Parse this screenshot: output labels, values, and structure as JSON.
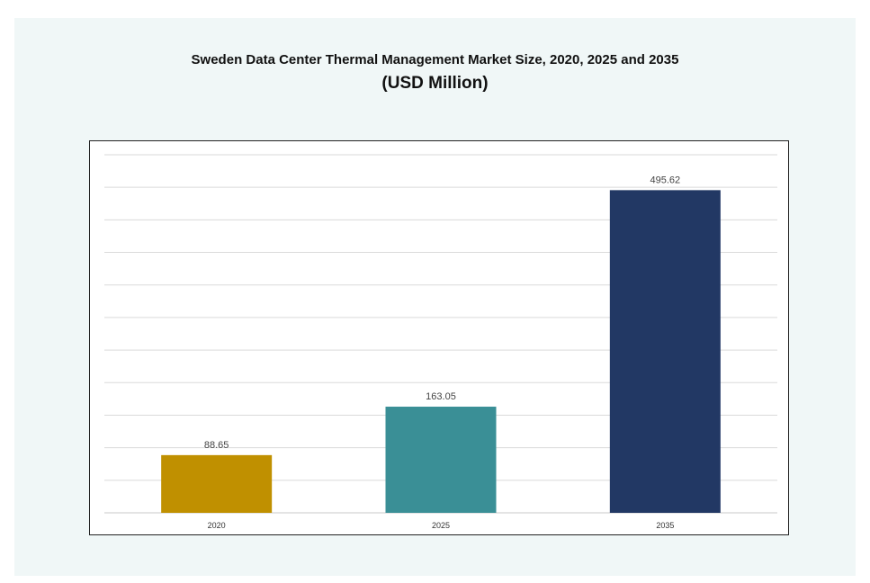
{
  "chart_data": {
    "type": "bar",
    "title": "Sweden Data Center Thermal Management Market Size, 2020, 2025 and 2035",
    "subtitle": "(USD Million)",
    "xlabel": "",
    "ylabel": "",
    "categories": [
      "2020",
      "2025",
      "2035"
    ],
    "values": [
      88.65,
      163.05,
      495.62
    ],
    "value_labels": [
      "88.65",
      "163.05",
      "495.62"
    ],
    "colors": [
      "#c09000",
      "#3a8f96",
      "#223864"
    ],
    "ylim": [
      0,
      550
    ],
    "grid": true,
    "legend": "none"
  }
}
